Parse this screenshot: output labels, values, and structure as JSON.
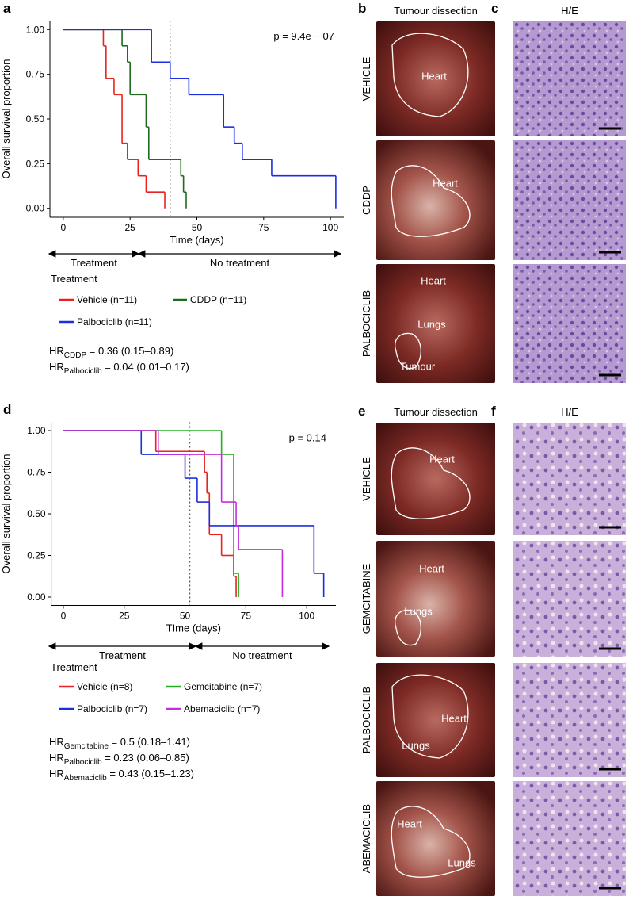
{
  "chart_data": [
    {
      "type": "line",
      "step": true,
      "ylabel": "Overall survival proportion",
      "xlabel": "Time (days)",
      "annotation": "p = 9.4e − 07",
      "vline": 40,
      "xlim": [
        -5,
        105
      ],
      "ylim": [
        -0.05,
        1.05
      ],
      "xticks": [
        0,
        25,
        50,
        75,
        100
      ],
      "yticks": [
        {
          "value": 0,
          "label": "0.00"
        },
        {
          "value": 0.25,
          "label": "0.25"
        },
        {
          "value": 0.5,
          "label": "0.50"
        },
        {
          "value": 0.75,
          "label": "0.75"
        },
        {
          "value": 1,
          "label": "1.00"
        }
      ],
      "phases": [
        "Treatment",
        "No treatment"
      ],
      "legend_title": "Treatment",
      "series": [
        {
          "name": "Vehicle (n=11)",
          "color": "#e8231f",
          "x": [
            0,
            15,
            16,
            19,
            22,
            24,
            28,
            31,
            38
          ],
          "values": [
            1,
            0.909,
            0.727,
            0.636,
            0.364,
            0.273,
            0.182,
            0.091,
            0
          ]
        },
        {
          "name": "CDDP (n=11)",
          "color": "#1e6a1e",
          "x": [
            0,
            22,
            24,
            25,
            31,
            32,
            44,
            45,
            46
          ],
          "values": [
            1,
            0.909,
            0.818,
            0.636,
            0.455,
            0.273,
            0.182,
            0.091,
            0
          ]
        },
        {
          "name": "Palbociclib (n=11)",
          "color": "#1b2ee0",
          "x": [
            0,
            33,
            40,
            47,
            60,
            64,
            67,
            78,
            102
          ],
          "values": [
            1,
            0.818,
            0.727,
            0.636,
            0.455,
            0.364,
            0.273,
            0.182,
            0
          ]
        }
      ],
      "hazard_ratios": [
        {
          "label": "HR",
          "subscript": "CDDP",
          "text": " = 0.36 (0.15–0.89)"
        },
        {
          "label": "HR",
          "subscript": "Palbociclib",
          "text": " = 0.04 (0.01–0.17)"
        }
      ]
    },
    {
      "type": "line",
      "step": true,
      "ylabel": "Overall survival proportion",
      "xlabel": "TIme (days)",
      "annotation": "p = 0.14",
      "vline": 52,
      "xlim": [
        -5,
        112
      ],
      "ylim": [
        -0.05,
        1.05
      ],
      "xticks": [
        0,
        25,
        50,
        75,
        100
      ],
      "yticks": [
        {
          "value": 0,
          "label": "0.00"
        },
        {
          "value": 0.25,
          "label": "0.25"
        },
        {
          "value": 0.5,
          "label": "0.50"
        },
        {
          "value": 0.75,
          "label": "0.75"
        },
        {
          "value": 1,
          "label": "1.00"
        }
      ],
      "phases": [
        "Treatment",
        "No treatment"
      ],
      "legend_title": "Treatment",
      "series": [
        {
          "name": "Vehicle (n=8)",
          "color": "#e8231f",
          "x": [
            0,
            38,
            58,
            59,
            60,
            65,
            70,
            71
          ],
          "values": [
            1,
            0.875,
            0.75,
            0.625,
            0.375,
            0.25,
            0.125,
            0
          ]
        },
        {
          "name": "Gemcitabine (n=7)",
          "color": "#22b022",
          "x": [
            0,
            65,
            70,
            72
          ],
          "values": [
            1,
            0.857,
            0.143,
            0
          ]
        },
        {
          "name": "Palbociclib (n=7)",
          "color": "#1b2ee0",
          "x": [
            0,
            32,
            50,
            55,
            60,
            103,
            107
          ],
          "values": [
            1,
            0.857,
            0.714,
            0.571,
            0.429,
            0.143,
            0
          ]
        },
        {
          "name": "Abemaciclib (n=7)",
          "color": "#c42ee0",
          "x": [
            0,
            39,
            65,
            71,
            72,
            90
          ],
          "values": [
            1,
            0.857,
            0.571,
            0.429,
            0.286,
            0
          ]
        }
      ],
      "hazard_ratios": [
        {
          "label": "HR",
          "subscript": "Gemcitabine",
          "text": " = 0.5 (0.18–1.41)"
        },
        {
          "label": "HR",
          "subscript": "Palbociclib",
          "text": " = 0.23 (0.06–0.85)"
        },
        {
          "label": "HR",
          "subscript": "Abemaciclib",
          "text": " = 0.43 (0.15–1.23)"
        }
      ]
    }
  ],
  "figure": {
    "panel_letters": [
      "a",
      "b",
      "c",
      "d",
      "e",
      "f"
    ],
    "top": {
      "dissection_title": "Tumour dissection",
      "histology_title": "H/E",
      "rows": [
        {
          "label": "VEHICLE",
          "organs": [
            "Heart"
          ]
        },
        {
          "label": "CDDP",
          "organs": [
            "Heart"
          ]
        },
        {
          "label": "PALBOCICLIB",
          "organs": [
            "Heart",
            "Lungs",
            "Tumour"
          ]
        }
      ]
    },
    "bottom": {
      "dissection_title": "Tumour dissection",
      "histology_title": "H/E",
      "rows": [
        {
          "label": "VEHICLE",
          "organs": [
            "Heart"
          ]
        },
        {
          "label": "GEMCITABINE",
          "organs": [
            "Heart",
            "Lungs"
          ]
        },
        {
          "label": "PALBOCICLIB",
          "organs": [
            "Heart",
            "Lungs"
          ]
        },
        {
          "label": "ABEMACICLIB",
          "organs": [
            "Heart",
            "Lungs"
          ]
        }
      ]
    }
  }
}
